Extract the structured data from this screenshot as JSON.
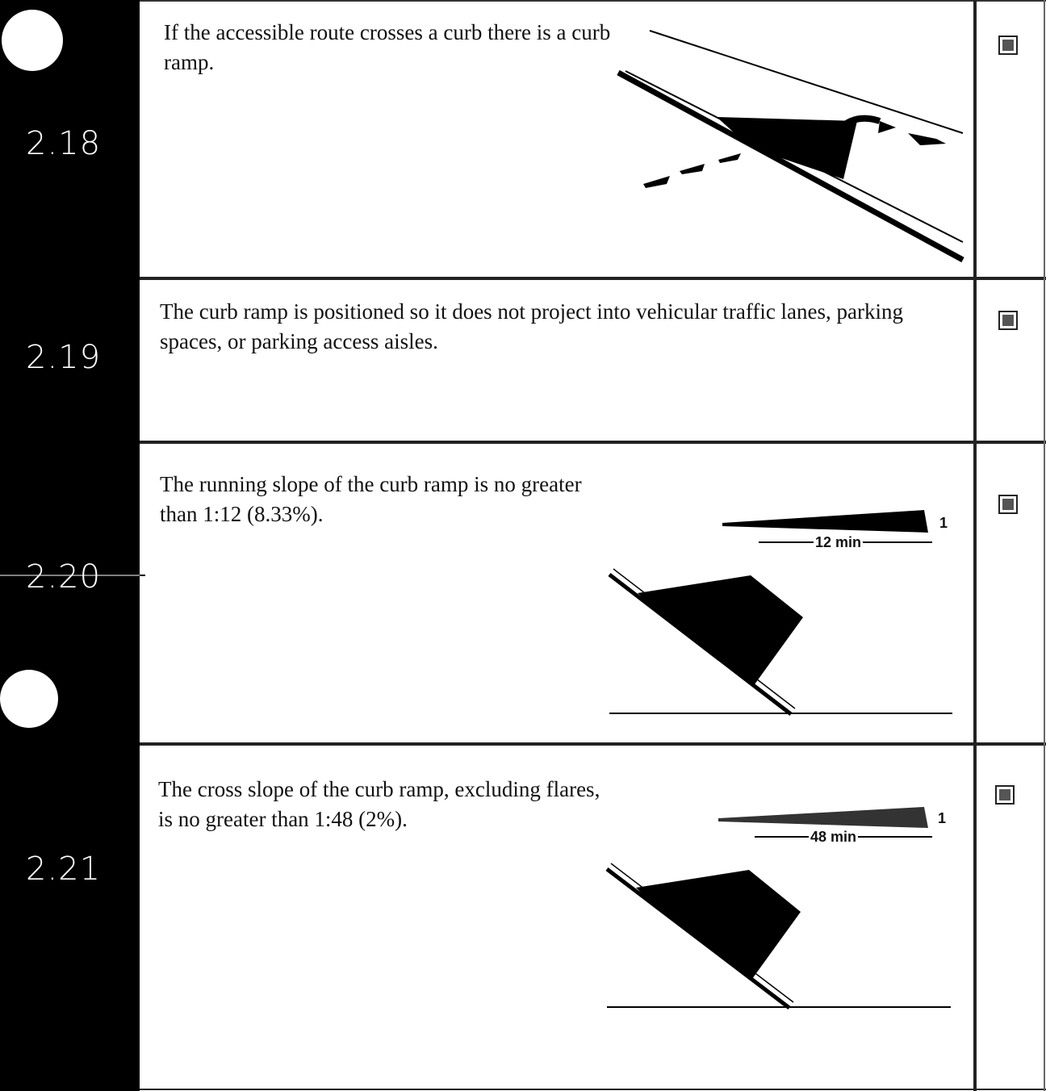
{
  "items": [
    {
      "number": "2.18",
      "text": "If the accessible route crosses a curb there is a curb ramp."
    },
    {
      "number": "2.19",
      "text": "The curb ramp is positioned so it does not project into vehicular traffic lanes, parking spaces, or parking access aisles."
    },
    {
      "number": "2.20",
      "text": "The running slope of the curb ramp is no greater than 1:12 (8.33%).",
      "figure": {
        "run_label": "12 min",
        "rise_label": "1"
      }
    },
    {
      "number": "2.21",
      "text": "The cross slope of the curb ramp, excluding flares, is no greater than 1:48 (2%).",
      "figure": {
        "run_label": "48 min",
        "rise_label": "1"
      }
    }
  ]
}
